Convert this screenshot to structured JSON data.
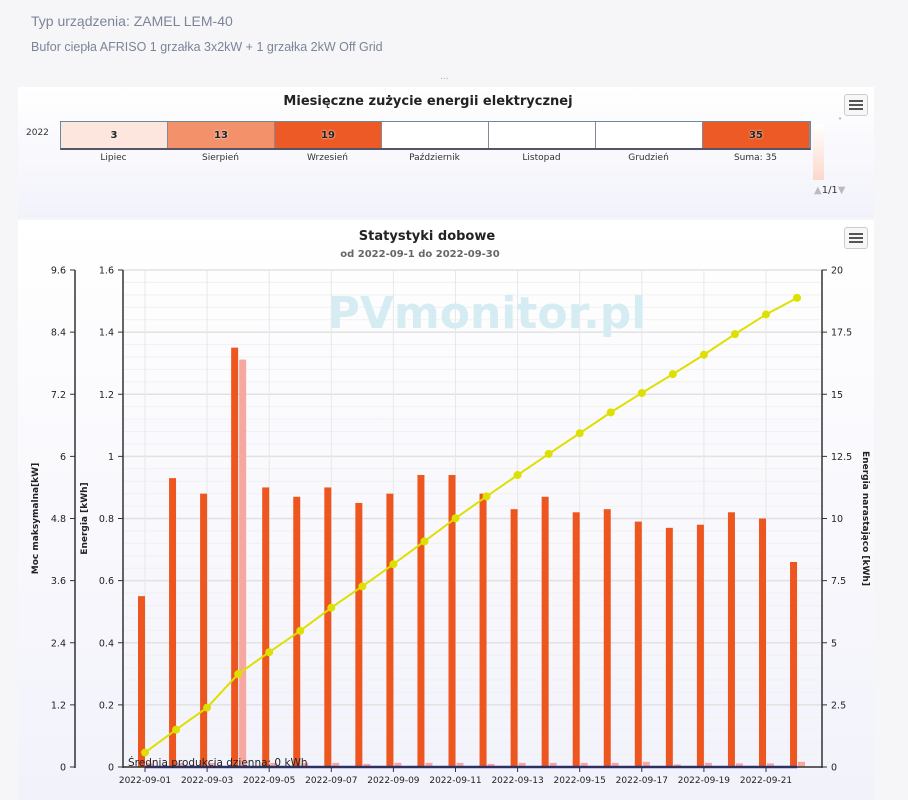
{
  "device": {
    "type_line": "Typ urządzenia: ZAMEL LEM-40",
    "description": "Bufor ciepła AFRISO 1 grzałka 3x2kW + 1 grzałka 2kW Off Grid",
    "more": "..."
  },
  "monthly": {
    "title": "Miesięczne zużycie energii elektrycznej",
    "year": "2022",
    "cells": [
      {
        "label": "Lipiec",
        "value": "3",
        "color": "#fde6de"
      },
      {
        "label": "Sierpień",
        "value": "13",
        "color": "#f3916a"
      },
      {
        "label": "Wrzesień",
        "value": "19",
        "color": "#ed5a25"
      },
      {
        "label": "Październik",
        "value": "",
        "color": "#ffffff"
      },
      {
        "label": "Listopad",
        "value": "",
        "color": "#ffffff"
      },
      {
        "label": "Grudzień",
        "value": "",
        "color": "#ffffff"
      },
      {
        "label": "Suma: 35",
        "value": "35",
        "color": "#ed5a25"
      }
    ],
    "pager": "1/1",
    "menu_icon": "hamburger-icon"
  },
  "chart_data": {
    "type": "bar",
    "title": "Statystyki dobowe",
    "subtitle": "od 2022-09-1 do 2022-09-30",
    "watermark": "PVmonitor.pl",
    "annotation": "Średnia produkcja dzienna: 0 kWh",
    "categories": [
      "2022-09-01",
      "2022-09-02",
      "2022-09-03",
      "2022-09-04",
      "2022-09-05",
      "2022-09-06",
      "2022-09-07",
      "2022-09-08",
      "2022-09-09",
      "2022-09-10",
      "2022-09-11",
      "2022-09-12",
      "2022-09-13",
      "2022-09-14",
      "2022-09-15",
      "2022-09-16",
      "2022-09-17",
      "2022-09-18",
      "2022-09-19",
      "2022-09-20",
      "2022-09-21",
      "2022-09-22"
    ],
    "x_tick_labels": [
      "2022-09-01",
      "2022-09-03",
      "2022-09-05",
      "2022-09-07",
      "2022-09-09",
      "2022-09-11",
      "2022-09-13",
      "2022-09-15",
      "2022-09-17",
      "2022-09-19",
      "2022-09-21"
    ],
    "axes": {
      "power": {
        "label": "Moc maksymalna[kW]",
        "range": [
          0,
          9.6
        ],
        "ticks": [
          "0",
          "1.2",
          "2.4",
          "3.6",
          "4.8",
          "6",
          "7.2",
          "8.4",
          "9.6"
        ]
      },
      "energy": {
        "label": "Energia [kWh]",
        "range": [
          0,
          1.6
        ],
        "ticks": [
          "0",
          "0.2",
          "0.4",
          "0.6",
          "0.8",
          "1",
          "1.2",
          "1.4",
          "1.6"
        ]
      },
      "cumulative": {
        "label": "Energia narastająco [kWh]",
        "range": [
          0,
          20
        ],
        "ticks": [
          "0",
          "2.5",
          "5",
          "7.5",
          "10",
          "12.5",
          "15",
          "17.5",
          "20"
        ]
      }
    },
    "grid": true,
    "series": [
      {
        "axis": "energy",
        "type": "bar",
        "color": "#ee561f",
        "values": [
          0.55,
          0.93,
          0.88,
          1.35,
          0.9,
          0.87,
          0.9,
          0.85,
          0.88,
          0.94,
          0.94,
          0.88,
          0.83,
          0.87,
          0.82,
          0.83,
          0.79,
          0.77,
          0.78,
          0.82,
          0.8,
          0.66
        ]
      },
      {
        "axis": "power",
        "type": "bar",
        "color": "#f6a7a0",
        "values": [
          0.08,
          0.08,
          0.08,
          7.87,
          0.08,
          0.08,
          0.08,
          0.06,
          0.08,
          0.08,
          0.08,
          0.06,
          0.08,
          0.08,
          0.08,
          0.08,
          0.1,
          0.05,
          0.08,
          0.07,
          0.07,
          0.1
        ]
      },
      {
        "axis": "cumulative",
        "type": "line",
        "color": "#dde000",
        "values": [
          0.58,
          1.5,
          2.39,
          3.74,
          4.62,
          5.48,
          6.41,
          7.27,
          8.16,
          9.08,
          10.01,
          10.89,
          11.75,
          12.6,
          13.43,
          14.27,
          15.05,
          15.81,
          16.59,
          17.42,
          18.21,
          18.88
        ]
      },
      {
        "axis": "energy",
        "type": "line",
        "color": "#2233cc",
        "values": [
          0,
          0,
          0,
          0,
          0,
          0,
          0,
          0,
          0,
          0,
          0,
          0,
          0,
          0,
          0,
          0,
          0,
          0,
          0,
          0,
          0,
          0
        ]
      }
    ]
  }
}
